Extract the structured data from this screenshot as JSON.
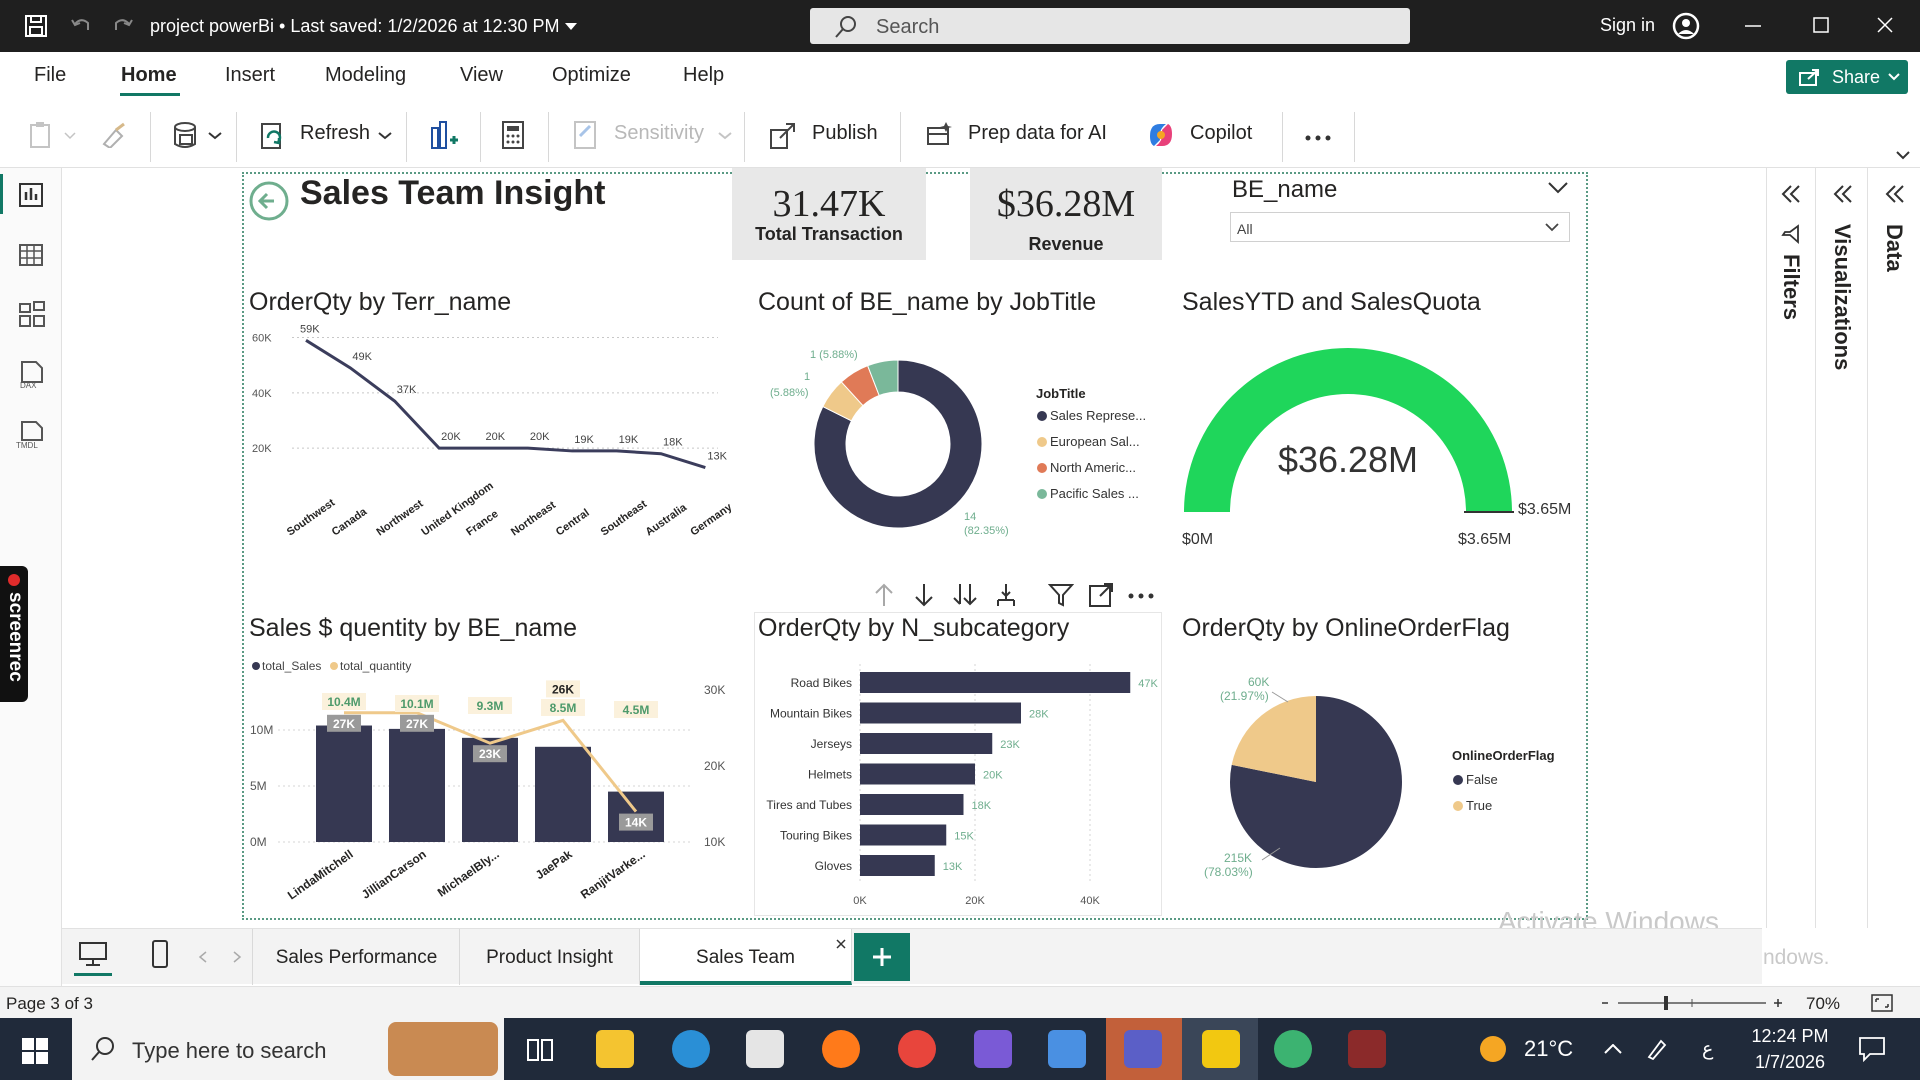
{
  "app": {
    "title": "project powerBi • Last saved: 1/2/2026 at 12:30 PM",
    "search_placeholder": "Search",
    "signin": "Sign in",
    "share": "Share"
  },
  "menu_tabs": [
    "File",
    "Home",
    "Insert",
    "Modeling",
    "View",
    "Optimize",
    "Help"
  ],
  "ribbon": {
    "refresh": "Refresh",
    "sensitivity": "Sensitivity",
    "publish": "Publish",
    "prep_ai": "Prep data for AI",
    "copilot": "Copilot"
  },
  "report": {
    "page_title": "Sales Team Insight",
    "kpi_transactions": {
      "value": "31.47K",
      "label": "Total Transaction"
    },
    "kpi_revenue": {
      "value": "$36.28M",
      "label": "Revenue"
    },
    "slicer": {
      "title": "BE_name",
      "value": "All"
    }
  },
  "chart_data": [
    {
      "type": "line",
      "title": "OrderQty by Terr_name",
      "categories": [
        "Southwest",
        "Canada",
        "Northwest",
        "United Kingdom",
        "France",
        "Northeast",
        "Central",
        "Southeast",
        "Australia",
        "Germany"
      ],
      "values": [
        59000,
        49000,
        37000,
        20000,
        20000,
        20000,
        19000,
        19000,
        18000,
        13000
      ],
      "data_labels": [
        "59K",
        "49K",
        "37K",
        "20K",
        "20K",
        "20K",
        "19K",
        "19K",
        "18K",
        "13K"
      ],
      "y_ticks": [
        "60K",
        "40K",
        "20K"
      ],
      "ylim": [
        15000,
        62000
      ],
      "color": "#3b3d5c"
    },
    {
      "type": "pie",
      "title": "Count of BE_name by JobTitle",
      "legend_title": "JobTitle",
      "slices": [
        {
          "name": "Sales Represe...",
          "value": 14,
          "color": "#363852"
        },
        {
          "name": "European Sal...",
          "value": 1,
          "color": "#efc98a"
        },
        {
          "name": "North Americ...",
          "value": 1,
          "color": "#e07a57"
        },
        {
          "name": "Pacific Sales ...",
          "value": 1,
          "color": "#7ab89a"
        }
      ],
      "labels": [
        "1 (5.88%)",
        "1",
        "(5.88%)",
        "14",
        "(82.35%)"
      ]
    },
    {
      "type": "gauge",
      "title": "SalesYTD and SalesQuota",
      "value": 36280000,
      "value_label": "$36.28M",
      "min_label": "$0M",
      "max_label": "$3.65M",
      "target_label": "$3.65M",
      "color": "#1fd65b"
    },
    {
      "type": "bar",
      "title": "Sales $ quentity by BE_name",
      "series": [
        {
          "name": "total_Sales",
          "values": [
            10.4,
            10.1,
            9.3,
            8.5,
            4.5
          ],
          "labels": [
            "10.4M",
            "10.1M",
            "9.3M",
            "8.5M",
            "4.5M"
          ],
          "color": "#363852"
        },
        {
          "name": "total_quantity",
          "values": [
            27,
            27,
            23,
            26,
            14
          ],
          "labels": [
            "27K",
            "27K",
            "23K",
            "26K",
            "14K"
          ],
          "color": "#efc98a"
        }
      ],
      "categories": [
        "LindaMitchell",
        "JillianCarson",
        "MichaelBly...",
        "JaePak",
        "RanjitVarke..."
      ],
      "y_ticks": [
        "10M",
        "5M",
        "0M"
      ],
      "y2_ticks": [
        "30K",
        "20K",
        "10K"
      ],
      "ylim": [
        0,
        10
      ],
      "y2lim": [
        10,
        30
      ]
    },
    {
      "type": "bar",
      "title": "OrderQty by N_subcategory",
      "categories": [
        "Road Bikes",
        "Mountain Bikes",
        "Jerseys",
        "Helmets",
        "Tires and Tubes",
        "Touring Bikes",
        "Gloves"
      ],
      "values": [
        47000,
        28000,
        23000,
        20000,
        18000,
        15000,
        13000
      ],
      "data_labels": [
        "47K",
        "28K",
        "23K",
        "20K",
        "18K",
        "15K",
        "13K"
      ],
      "x_ticks": [
        "0K",
        "20K",
        "40K"
      ],
      "xlim": [
        0,
        48000
      ],
      "color": "#363852"
    },
    {
      "type": "pie",
      "title": "OrderQty by OnlineOrderFlag",
      "legend_title": "OnlineOrderFlag",
      "slices": [
        {
          "name": "False",
          "value": 215,
          "color": "#363852"
        },
        {
          "name": "True",
          "value": 60,
          "color": "#efc98a"
        }
      ],
      "labels": [
        "60K",
        "(21.97%)",
        "215K",
        "(78.03%)"
      ]
    }
  ],
  "right_panes": [
    "Filters",
    "Visualizations",
    "Data"
  ],
  "page_tabs": [
    "Sales Performance",
    "Product Insight",
    "Sales Team"
  ],
  "status": {
    "page": "Page 3 of 3",
    "zoom": "70%"
  },
  "watermark": {
    "line1": "Activate Windows",
    "line2": "Go to Settings to activate Windows."
  },
  "taskbar": {
    "search": "Type here to search",
    "temperature": "21°C",
    "time": "12:24 PM",
    "date": "1/7/2026",
    "lang": "ع"
  },
  "screenrec_label": "screenrec"
}
